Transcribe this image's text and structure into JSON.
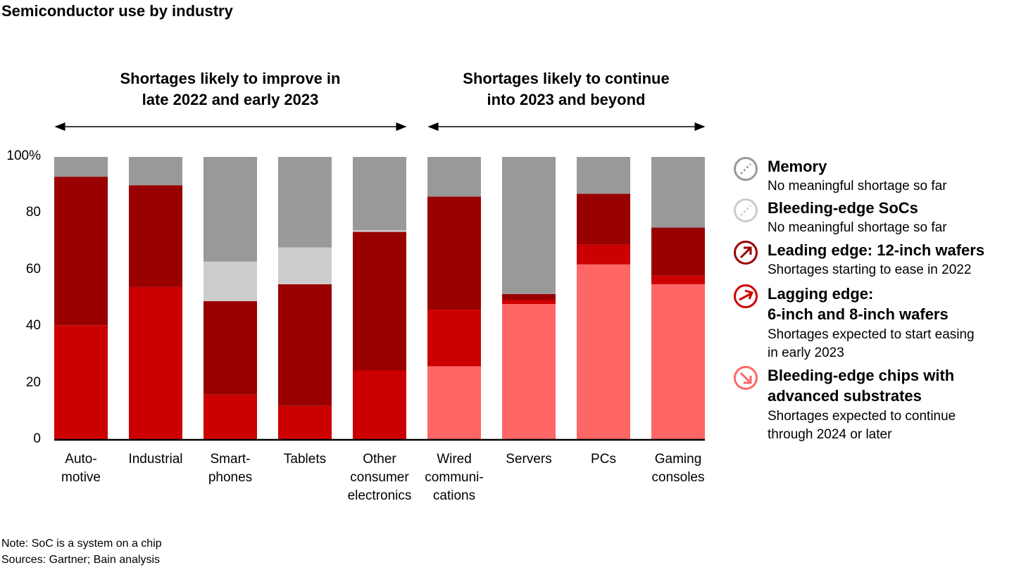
{
  "chart_data": {
    "type": "bar",
    "stacked": true,
    "title": "Semiconductor use by industry",
    "xlabel": "",
    "ylabel": "",
    "ylim": [
      0,
      100
    ],
    "y_ticks": [
      "0",
      "20",
      "40",
      "60",
      "80",
      "100%"
    ],
    "y_tick_values": [
      0,
      20,
      40,
      60,
      80,
      100
    ],
    "categories": [
      "Auto-\nmotive",
      "Industrial",
      "Smart-\nphones",
      "Tablets",
      "Other\nconsumer\nelectronics",
      "Wired\ncommuni-\ncations",
      "Servers",
      "PCs",
      "Gaming\nconsoles"
    ],
    "series": [
      {
        "name": "Bleeding-edge chips with advanced substrates",
        "color": "#ff6666",
        "values": [
          0,
          0,
          0,
          0,
          0,
          26,
          48,
          62,
          55
        ]
      },
      {
        "name": "Lagging edge: 6-inch and 8-inch wafers",
        "color": "#cc0000",
        "values": [
          40.5,
          54,
          16,
          12,
          24.5,
          20,
          1.5,
          7,
          3
        ]
      },
      {
        "name": "Leading edge: 12-inch wafers",
        "color": "#990000",
        "values": [
          52.5,
          36,
          33,
          43,
          49,
          40,
          2,
          18,
          17
        ]
      },
      {
        "name": "Bleeding-edge SoCs",
        "color": "#cccccc",
        "values": [
          0,
          0,
          14,
          13,
          0.6,
          0,
          0,
          0,
          0
        ]
      },
      {
        "name": "Memory",
        "color": "#999999",
        "values": [
          7,
          10,
          37,
          32,
          25.9,
          14,
          48.5,
          13,
          25
        ]
      }
    ],
    "groups": [
      {
        "label": "Shortages likely to improve in\nlate 2022 and early 2023",
        "categories": [
          0,
          1,
          2,
          3,
          4
        ]
      },
      {
        "label": "Shortages likely to continue\ninto 2023 and beyond",
        "categories": [
          5,
          6,
          7,
          8
        ]
      }
    ],
    "legend": [
      {
        "title": "Memory",
        "desc": "No meaningful shortage so far",
        "icon": "dashed-diagonal-circle-icon",
        "color": "#999999"
      },
      {
        "title": "Bleeding-edge SoCs",
        "desc": "No meaningful shortage so far",
        "icon": "dashed-diagonal-circle-icon",
        "color": "#cccccc"
      },
      {
        "title": "Leading edge: 12-inch wafers",
        "desc": "Shortages starting to ease in 2022",
        "icon": "arrow-up-right-circle-icon",
        "color": "#990000"
      },
      {
        "title": "Lagging edge:\n6-inch and 8-inch wafers",
        "desc": "Shortages expected to start easing\nin early 2023",
        "icon": "arrow-right-circle-icon",
        "color": "#cc0000"
      },
      {
        "title": "Bleeding-edge chips with\nadvanced substrates",
        "desc": "Shortages expected to continue\nthrough 2024 or later",
        "icon": "arrow-down-right-circle-icon",
        "color": "#ff6666"
      }
    ],
    "legend_position": "right",
    "grid": false
  },
  "notes": {
    "note": "Note: SoC is a system on a chip",
    "sources": "Sources: Gartner; Bain analysis"
  }
}
